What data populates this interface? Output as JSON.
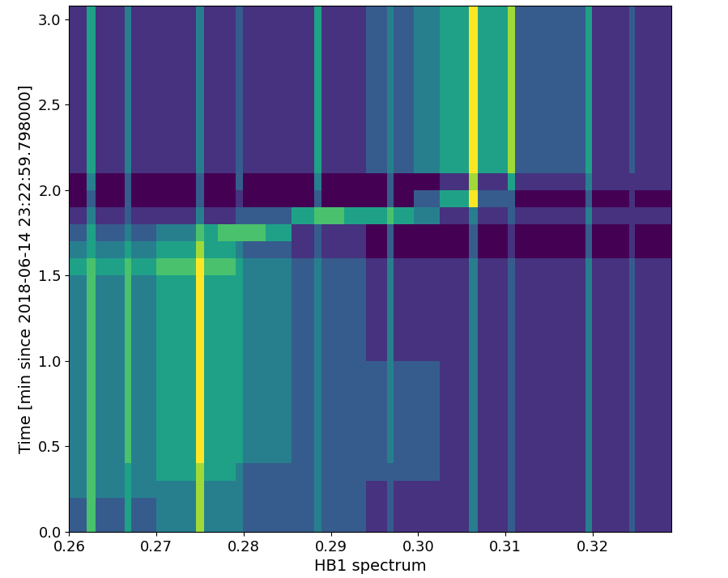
{
  "chart_data": {
    "type": "heatmap",
    "x_label": "HB1 spectrum",
    "y_label": "Time [min since 2018-06-14 23:22:59.798000]",
    "color": "viridis",
    "xlim": [
      0.26,
      0.329
    ],
    "ylim": [
      0,
      3.08
    ],
    "xticks": [
      {
        "value": 0.26,
        "label": "0.26"
      },
      {
        "value": 0.27,
        "label": "0.27"
      },
      {
        "value": 0.28,
        "label": "0.28"
      },
      {
        "value": 0.29,
        "label": "0.29"
      },
      {
        "value": 0.3,
        "label": "0.30"
      },
      {
        "value": 0.31,
        "label": "0.31"
      },
      {
        "value": 0.32,
        "label": "0.32"
      }
    ],
    "yticks": [
      {
        "value": 0.0,
        "label": "0.0"
      },
      {
        "value": 0.5,
        "label": "0.5"
      },
      {
        "value": 1.0,
        "label": "1.0"
      },
      {
        "value": 1.5,
        "label": "1.5"
      },
      {
        "value": 2.0,
        "label": "2.0"
      },
      {
        "value": 2.5,
        "label": "2.5"
      },
      {
        "value": 3.0,
        "label": "3.0"
      }
    ],
    "x_edges": [
      0.26,
      0.262,
      0.263,
      0.2664,
      0.2671,
      0.27,
      0.2735,
      0.2745,
      0.2755,
      0.277,
      0.2791,
      0.2799,
      0.2825,
      0.2855,
      0.2881,
      0.2889,
      0.2915,
      0.294,
      0.2964,
      0.2972,
      0.2995,
      0.3025,
      0.3058,
      0.3068,
      0.3103,
      0.3111,
      0.315,
      0.3192,
      0.3199,
      0.322,
      0.3242,
      0.3248,
      0.3265,
      0.329
    ],
    "y_edges": [
      0.0,
      0.1,
      0.2,
      0.3,
      0.4,
      0.5,
      0.6,
      0.7,
      0.8,
      0.9,
      1.0,
      1.1,
      1.2,
      1.3,
      1.4,
      1.5,
      1.6,
      1.7,
      1.8,
      1.9,
      2.0,
      2.1,
      2.2,
      2.3,
      2.4,
      2.5,
      2.6,
      2.7,
      2.8,
      2.9,
      3.0,
      3.08
    ],
    "cells": [
      [
        4,
        7,
        4,
        6,
        4,
        5,
        5,
        8,
        5,
        5,
        5,
        4,
        4,
        4,
        5,
        4,
        4,
        3,
        4,
        3,
        3,
        3,
        5,
        3,
        4,
        3,
        3,
        5,
        3,
        3,
        4,
        3,
        3
      ],
      [
        4,
        7,
        4,
        6,
        4,
        5,
        5,
        8,
        5,
        5,
        5,
        4,
        4,
        4,
        5,
        4,
        4,
        3,
        4,
        3,
        3,
        3,
        5,
        3,
        4,
        3,
        3,
        5,
        3,
        3,
        4,
        3,
        3
      ],
      [
        5,
        7,
        5,
        6,
        5,
        5,
        5,
        8,
        5,
        5,
        5,
        4,
        4,
        4,
        5,
        4,
        4,
        3,
        4,
        3,
        3,
        3,
        5,
        3,
        4,
        3,
        3,
        5,
        3,
        3,
        4,
        3,
        3
      ],
      [
        5,
        7,
        5,
        6,
        5,
        6,
        6,
        8,
        6,
        6,
        5,
        4,
        4,
        4,
        5,
        4,
        4,
        4,
        4,
        4,
        4,
        3,
        5,
        3,
        4,
        3,
        3,
        5,
        3,
        3,
        4,
        3,
        3
      ],
      [
        5,
        7,
        5,
        7,
        5,
        6,
        6,
        9,
        6,
        6,
        6,
        5,
        5,
        4,
        5,
        4,
        4,
        4,
        5,
        4,
        4,
        3,
        5,
        3,
        4,
        3,
        3,
        5,
        3,
        3,
        4,
        3,
        3
      ],
      [
        5,
        7,
        5,
        7,
        5,
        6,
        6,
        9,
        6,
        6,
        6,
        5,
        5,
        4,
        5,
        4,
        4,
        4,
        5,
        4,
        4,
        3,
        5,
        3,
        4,
        3,
        3,
        5,
        3,
        3,
        4,
        3,
        3
      ],
      [
        5,
        7,
        5,
        7,
        5,
        6,
        6,
        9,
        6,
        6,
        6,
        5,
        5,
        4,
        5,
        4,
        4,
        4,
        5,
        4,
        4,
        3,
        5,
        3,
        4,
        3,
        3,
        5,
        3,
        3,
        4,
        3,
        3
      ],
      [
        5,
        7,
        5,
        7,
        5,
        6,
        6,
        9,
        6,
        6,
        6,
        5,
        5,
        4,
        5,
        4,
        4,
        4,
        5,
        4,
        4,
        3,
        5,
        3,
        4,
        3,
        3,
        5,
        3,
        3,
        4,
        3,
        3
      ],
      [
        5,
        7,
        5,
        7,
        5,
        6,
        6,
        9,
        6,
        6,
        6,
        5,
        5,
        4,
        5,
        4,
        4,
        4,
        5,
        4,
        4,
        3,
        5,
        3,
        4,
        3,
        3,
        5,
        3,
        3,
        4,
        3,
        3
      ],
      [
        5,
        7,
        5,
        7,
        5,
        6,
        6,
        9,
        6,
        6,
        6,
        5,
        5,
        4,
        5,
        4,
        4,
        4,
        5,
        4,
        4,
        3,
        5,
        3,
        4,
        3,
        3,
        5,
        3,
        3,
        4,
        3,
        3
      ],
      [
        5,
        7,
        5,
        7,
        5,
        6,
        6,
        9,
        6,
        6,
        6,
        5,
        5,
        4,
        5,
        4,
        4,
        3,
        5,
        3,
        3,
        3,
        5,
        3,
        4,
        3,
        3,
        5,
        3,
        3,
        4,
        3,
        3
      ],
      [
        5,
        7,
        5,
        7,
        5,
        6,
        6,
        9,
        6,
        6,
        6,
        5,
        5,
        4,
        5,
        4,
        4,
        3,
        5,
        3,
        3,
        3,
        5,
        3,
        4,
        3,
        3,
        5,
        3,
        3,
        4,
        3,
        3
      ],
      [
        5,
        7,
        5,
        7,
        5,
        6,
        6,
        9,
        6,
        6,
        6,
        5,
        5,
        4,
        5,
        4,
        4,
        3,
        5,
        3,
        3,
        3,
        5,
        3,
        4,
        3,
        3,
        5,
        3,
        3,
        4,
        3,
        3
      ],
      [
        5,
        7,
        5,
        7,
        5,
        6,
        6,
        9,
        6,
        6,
        6,
        5,
        5,
        4,
        5,
        4,
        4,
        3,
        5,
        3,
        3,
        3,
        5,
        3,
        4,
        3,
        3,
        5,
        3,
        3,
        4,
        3,
        3
      ],
      [
        5,
        7,
        5,
        7,
        5,
        6,
        6,
        9,
        6,
        6,
        6,
        5,
        5,
        4,
        5,
        4,
        4,
        3,
        5,
        3,
        3,
        3,
        5,
        3,
        4,
        3,
        3,
        5,
        3,
        3,
        4,
        3,
        3
      ],
      [
        6,
        7,
        6,
        7,
        6,
        7,
        7,
        9,
        7,
        7,
        6,
        5,
        5,
        4,
        5,
        4,
        4,
        3,
        5,
        3,
        3,
        3,
        5,
        3,
        4,
        3,
        3,
        5,
        3,
        3,
        4,
        3,
        3
      ],
      [
        5,
        6,
        5,
        6,
        5,
        6,
        6,
        8,
        6,
        6,
        5,
        4,
        4,
        3,
        4,
        3,
        3,
        2,
        4,
        2,
        2,
        2,
        4,
        2,
        3,
        2,
        2,
        4,
        2,
        2,
        3,
        2,
        2
      ],
      [
        4,
        6,
        4,
        5,
        4,
        5,
        5,
        7,
        6,
        7,
        7,
        7,
        6,
        3,
        4,
        3,
        3,
        2,
        4,
        2,
        2,
        2,
        4,
        2,
        3,
        2,
        2,
        4,
        2,
        2,
        3,
        2,
        2
      ],
      [
        3,
        5,
        3,
        4,
        3,
        3,
        3,
        5,
        3,
        3,
        4,
        4,
        4,
        6,
        7,
        7,
        6,
        6,
        7,
        6,
        5,
        3,
        5,
        3,
        4,
        3,
        3,
        5,
        3,
        3,
        3,
        3,
        3
      ],
      [
        2,
        4,
        2,
        4,
        2,
        2,
        2,
        4,
        2,
        2,
        3,
        2,
        2,
        2,
        4,
        2,
        2,
        2,
        4,
        2,
        4,
        6,
        9,
        4,
        4,
        2,
        2,
        4,
        2,
        2,
        3,
        2,
        2
      ],
      [
        2,
        5,
        2,
        4,
        2,
        2,
        2,
        4,
        2,
        2,
        4,
        2,
        2,
        2,
        5,
        2,
        2,
        2,
        4,
        2,
        2,
        3,
        8,
        3,
        6,
        3,
        3,
        5,
        3,
        3,
        3,
        3,
        3
      ],
      [
        3,
        6,
        3,
        5,
        3,
        3,
        3,
        5,
        3,
        3,
        4,
        3,
        3,
        3,
        6,
        3,
        3,
        4,
        5,
        4,
        5,
        6,
        9,
        6,
        8,
        4,
        4,
        6,
        3,
        3,
        4,
        3,
        3
      ],
      [
        3,
        6,
        3,
        5,
        3,
        3,
        3,
        5,
        3,
        3,
        4,
        3,
        3,
        3,
        6,
        3,
        3,
        4,
        5,
        4,
        5,
        6,
        9,
        6,
        8,
        4,
        4,
        6,
        3,
        3,
        4,
        3,
        3
      ],
      [
        3,
        6,
        3,
        5,
        3,
        3,
        3,
        5,
        3,
        3,
        4,
        3,
        3,
        3,
        6,
        3,
        3,
        4,
        5,
        4,
        5,
        6,
        9,
        6,
        8,
        4,
        4,
        6,
        3,
        3,
        4,
        3,
        3
      ],
      [
        3,
        6,
        3,
        5,
        3,
        3,
        3,
        5,
        3,
        3,
        4,
        3,
        3,
        3,
        6,
        3,
        3,
        4,
        5,
        4,
        5,
        6,
        9,
        6,
        8,
        4,
        4,
        6,
        3,
        3,
        4,
        3,
        3
      ],
      [
        3,
        6,
        3,
        5,
        3,
        3,
        3,
        5,
        3,
        3,
        4,
        3,
        3,
        3,
        6,
        3,
        3,
        4,
        5,
        4,
        5,
        6,
        9,
        6,
        8,
        4,
        4,
        6,
        3,
        3,
        4,
        3,
        3
      ],
      [
        3,
        6,
        3,
        5,
        3,
        3,
        3,
        5,
        3,
        3,
        4,
        3,
        3,
        3,
        6,
        3,
        3,
        4,
        5,
        4,
        5,
        6,
        9,
        6,
        8,
        4,
        4,
        6,
        3,
        3,
        4,
        3,
        3
      ],
      [
        3,
        6,
        3,
        5,
        3,
        3,
        3,
        5,
        3,
        3,
        4,
        3,
        3,
        3,
        6,
        3,
        3,
        4,
        5,
        4,
        5,
        6,
        9,
        6,
        8,
        4,
        4,
        6,
        3,
        3,
        4,
        3,
        3
      ],
      [
        3,
        6,
        3,
        5,
        3,
        3,
        3,
        5,
        3,
        3,
        4,
        3,
        3,
        3,
        6,
        3,
        3,
        4,
        5,
        4,
        5,
        6,
        9,
        6,
        8,
        4,
        4,
        6,
        3,
        3,
        4,
        3,
        3
      ],
      [
        3,
        6,
        3,
        5,
        3,
        3,
        3,
        5,
        3,
        3,
        4,
        3,
        3,
        3,
        6,
        3,
        3,
        4,
        5,
        4,
        5,
        6,
        9,
        6,
        8,
        4,
        4,
        6,
        3,
        3,
        4,
        3,
        3
      ],
      [
        3,
        6,
        3,
        5,
        3,
        3,
        3,
        5,
        3,
        3,
        4,
        3,
        3,
        3,
        6,
        3,
        3,
        4,
        5,
        4,
        5,
        6,
        9,
        6,
        8,
        4,
        4,
        6,
        3,
        3,
        4,
        3,
        3
      ]
    ]
  }
}
